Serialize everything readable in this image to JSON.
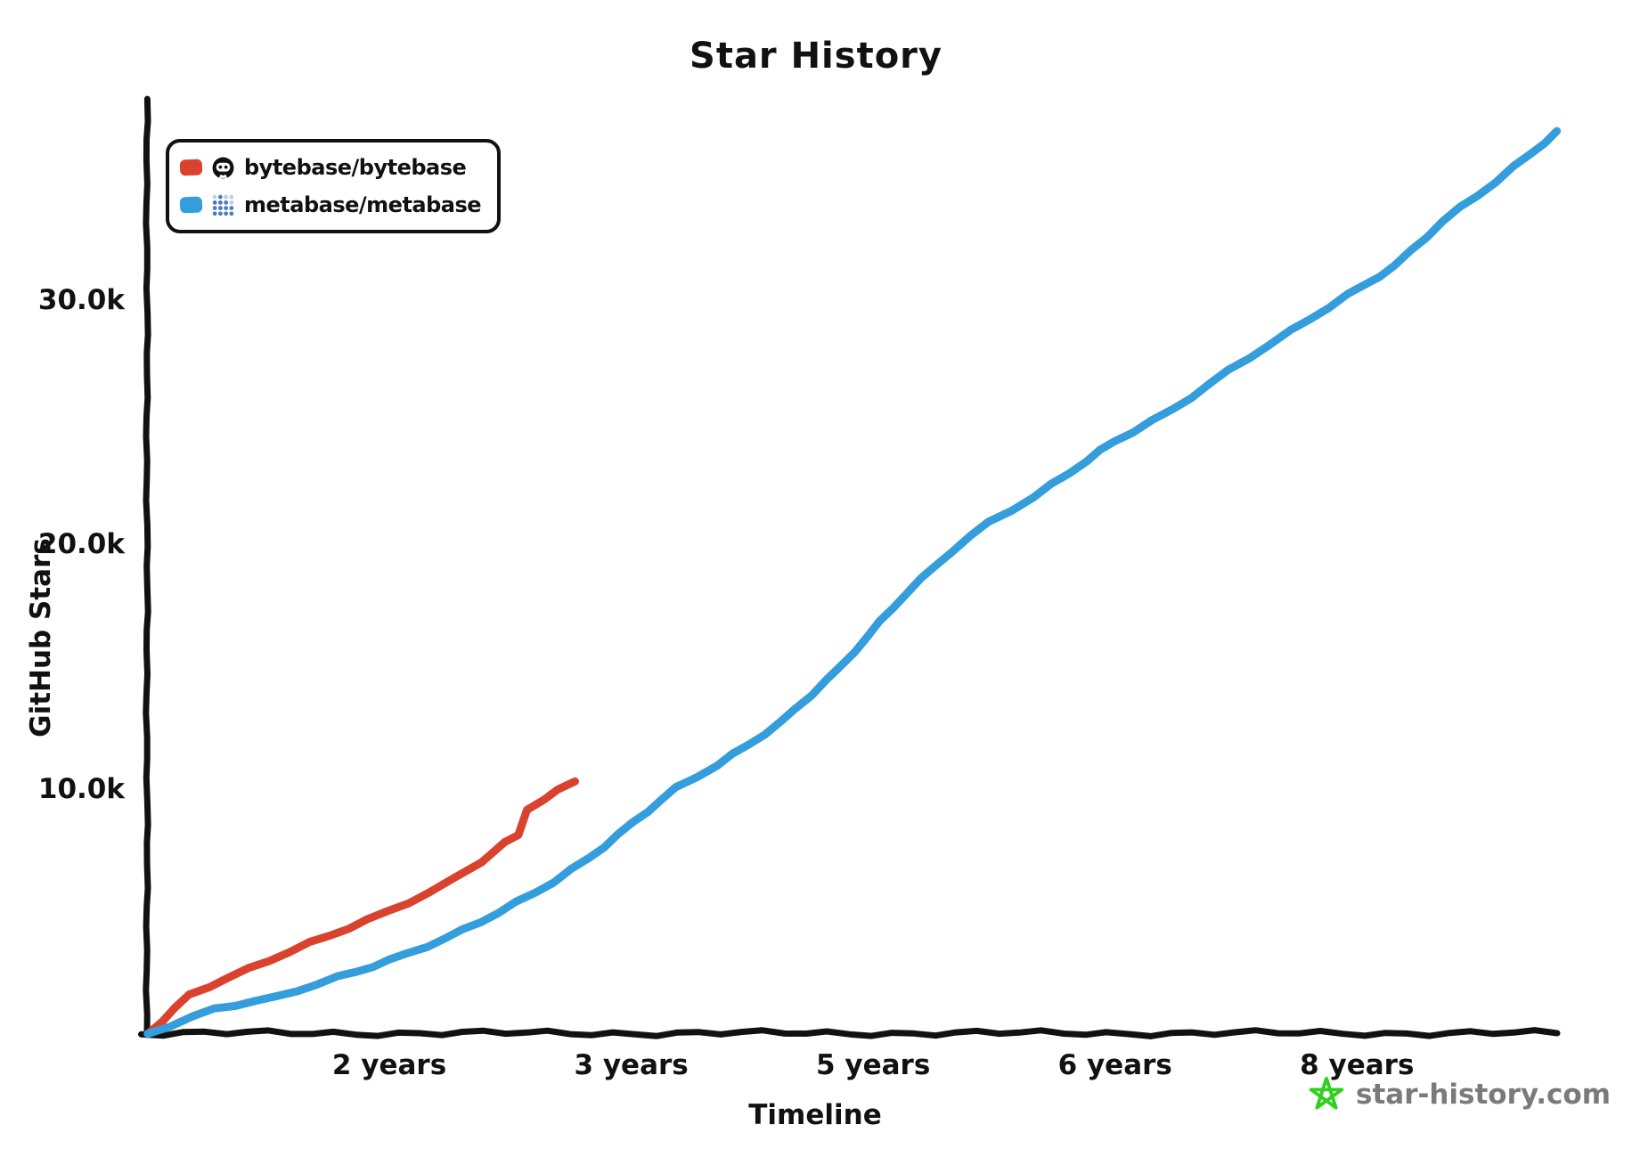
{
  "title": "Star History",
  "axes": {
    "y_label": "GitHub Stars",
    "x_label": "Timeline",
    "y_ticks": [
      {
        "label": "10.0k",
        "value": 10000
      },
      {
        "label": "20.0k",
        "value": 20000
      },
      {
        "label": "30.0k",
        "value": 30000
      }
    ],
    "x_ticks": [
      {
        "label": "2 years",
        "years": 1.55
      },
      {
        "label": "3 years",
        "years": 3.1
      },
      {
        "label": "5 years",
        "years": 4.65
      },
      {
        "label": "6 years",
        "years": 6.2
      },
      {
        "label": "8 years",
        "years": 7.75
      }
    ]
  },
  "legend": [
    {
      "repo": "bytebase/bytebase",
      "color": "#d9432e",
      "icon": "bytebase-avatar-icon"
    },
    {
      "repo": "metabase/metabase",
      "color": "#349ddb",
      "icon": "metabase-logo-icon"
    }
  ],
  "watermark": {
    "label": "star-history.com",
    "text_color": "#7a7a7a",
    "star_color": "#2ed11c"
  },
  "colors": {
    "axis": "#111111",
    "bytebase_line": "#d9432e",
    "metabase_line": "#349ddb",
    "metabase_dot": "#4a7cc2",
    "metabase_dot_light": "#b9cfe8"
  },
  "chart_data": {
    "type": "line",
    "title": "Star History",
    "xlabel": "Timeline",
    "ylabel": "GitHub Stars",
    "x_unit": "years since repo creation",
    "xlim": [
      0,
      9.3
    ],
    "ylim": [
      0,
      38000
    ],
    "grid": false,
    "legend_position": "top-left",
    "series": [
      {
        "name": "bytebase/bytebase",
        "color": "#d9432e",
        "points": [
          [
            0,
            0
          ],
          [
            0.27,
            1550
          ],
          [
            0.65,
            2600
          ],
          [
            1.04,
            3700
          ],
          [
            1.41,
            4650
          ],
          [
            1.8,
            5700
          ],
          [
            1.97,
            6300
          ],
          [
            2.14,
            7000
          ],
          [
            2.29,
            7800
          ],
          [
            2.38,
            8050
          ],
          [
            2.43,
            9150
          ],
          [
            2.54,
            9600
          ],
          [
            2.63,
            9950
          ],
          [
            2.74,
            10300
          ]
        ]
      },
      {
        "name": "metabase/metabase",
        "color": "#349ddb",
        "points": [
          [
            0,
            0
          ],
          [
            0.43,
            980
          ],
          [
            0.83,
            1450
          ],
          [
            1.22,
            2300
          ],
          [
            1.55,
            3000
          ],
          [
            1.91,
            3850
          ],
          [
            2.25,
            4900
          ],
          [
            2.6,
            6200
          ],
          [
            2.83,
            7200
          ],
          [
            3.11,
            8600
          ],
          [
            3.39,
            10000
          ],
          [
            3.65,
            10950
          ],
          [
            4.05,
            12700
          ],
          [
            4.45,
            15000
          ],
          [
            4.86,
            18000
          ],
          [
            5.16,
            19800
          ],
          [
            5.39,
            20900
          ],
          [
            5.68,
            21900
          ],
          [
            6.02,
            23400
          ],
          [
            6.19,
            24200
          ],
          [
            6.56,
            25500
          ],
          [
            6.93,
            27100
          ],
          [
            7.33,
            28700
          ],
          [
            7.69,
            30200
          ],
          [
            7.99,
            31400
          ],
          [
            8.3,
            33200
          ],
          [
            8.64,
            34800
          ],
          [
            8.87,
            36000
          ],
          [
            9.03,
            36900
          ]
        ]
      }
    ]
  }
}
